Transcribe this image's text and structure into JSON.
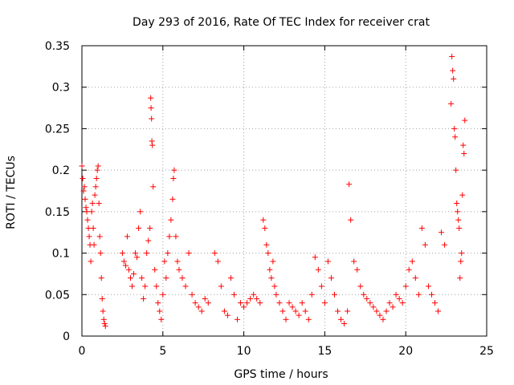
{
  "chart_data": {
    "type": "scatter",
    "title": "Day 293 of 2016, Rate Of TEC Index for receiver crat",
    "xlabel": "GPS time / hours",
    "ylabel": "ROTI / TECUs",
    "xlim": [
      0,
      25
    ],
    "ylim": [
      0,
      0.35
    ],
    "x_ticks": [
      0,
      5,
      10,
      15,
      20,
      25
    ],
    "x_tick_labels": [
      "0",
      "5",
      "10",
      "15",
      "20",
      "25"
    ],
    "y_ticks": [
      0,
      0.05,
      0.1,
      0.15,
      0.2,
      0.25,
      0.3,
      0.35
    ],
    "y_tick_labels": [
      "0",
      "0.05",
      "0.1",
      "0.15",
      "0.2",
      "0.25",
      "0.3",
      "0.35"
    ],
    "grid": true,
    "marker": "+",
    "marker_color": "#ff0000",
    "series": [
      {
        "name": "ROTI",
        "points": [
          [
            0.0,
            0.205
          ],
          [
            0.05,
            0.19
          ],
          [
            0.1,
            0.175
          ],
          [
            0.15,
            0.18
          ],
          [
            0.2,
            0.165
          ],
          [
            0.25,
            0.155
          ],
          [
            0.3,
            0.15
          ],
          [
            0.35,
            0.14
          ],
          [
            0.4,
            0.13
          ],
          [
            0.45,
            0.12
          ],
          [
            0.5,
            0.11
          ],
          [
            0.55,
            0.09
          ],
          [
            0.6,
            0.15
          ],
          [
            0.65,
            0.16
          ],
          [
            0.7,
            0.13
          ],
          [
            0.75,
            0.11
          ],
          [
            0.8,
            0.17
          ],
          [
            0.85,
            0.18
          ],
          [
            0.9,
            0.19
          ],
          [
            0.95,
            0.2
          ],
          [
            1.0,
            0.205
          ],
          [
            1.05,
            0.16
          ],
          [
            1.1,
            0.12
          ],
          [
            1.15,
            0.1
          ],
          [
            1.2,
            0.07
          ],
          [
            1.25,
            0.045
          ],
          [
            1.3,
            0.03
          ],
          [
            1.35,
            0.02
          ],
          [
            1.4,
            0.015
          ],
          [
            1.45,
            0.012
          ],
          [
            2.5,
            0.1
          ],
          [
            2.6,
            0.09
          ],
          [
            2.7,
            0.085
          ],
          [
            2.8,
            0.12
          ],
          [
            2.9,
            0.08
          ],
          [
            3.0,
            0.07
          ],
          [
            3.1,
            0.06
          ],
          [
            3.2,
            0.075
          ],
          [
            3.3,
            0.1
          ],
          [
            3.4,
            0.095
          ],
          [
            3.5,
            0.13
          ],
          [
            3.6,
            0.15
          ],
          [
            3.7,
            0.07
          ],
          [
            3.8,
            0.045
          ],
          [
            3.9,
            0.06
          ],
          [
            4.0,
            0.1
          ],
          [
            4.1,
            0.115
          ],
          [
            4.2,
            0.13
          ],
          [
            4.25,
            0.287
          ],
          [
            4.27,
            0.275
          ],
          [
            4.3,
            0.262
          ],
          [
            4.32,
            0.235
          ],
          [
            4.35,
            0.23
          ],
          [
            4.4,
            0.18
          ],
          [
            4.5,
            0.08
          ],
          [
            4.6,
            0.06
          ],
          [
            4.7,
            0.04
          ],
          [
            4.8,
            0.03
          ],
          [
            4.9,
            0.02
          ],
          [
            5.0,
            0.05
          ],
          [
            5.1,
            0.09
          ],
          [
            5.2,
            0.07
          ],
          [
            5.3,
            0.1
          ],
          [
            5.4,
            0.12
          ],
          [
            5.5,
            0.14
          ],
          [
            5.6,
            0.165
          ],
          [
            5.65,
            0.19
          ],
          [
            5.7,
            0.2
          ],
          [
            5.8,
            0.12
          ],
          [
            5.9,
            0.09
          ],
          [
            6.0,
            0.08
          ],
          [
            6.2,
            0.07
          ],
          [
            6.4,
            0.06
          ],
          [
            6.6,
            0.1
          ],
          [
            6.8,
            0.05
          ],
          [
            7.0,
            0.04
          ],
          [
            7.2,
            0.035
          ],
          [
            7.4,
            0.03
          ],
          [
            7.6,
            0.045
          ],
          [
            7.8,
            0.04
          ],
          [
            8.2,
            0.1
          ],
          [
            8.4,
            0.09
          ],
          [
            8.6,
            0.06
          ],
          [
            8.8,
            0.03
          ],
          [
            9.0,
            0.025
          ],
          [
            9.2,
            0.07
          ],
          [
            9.4,
            0.05
          ],
          [
            9.6,
            0.02
          ],
          [
            9.8,
            0.04
          ],
          [
            10.0,
            0.035
          ],
          [
            10.2,
            0.04
          ],
          [
            10.4,
            0.045
          ],
          [
            10.6,
            0.05
          ],
          [
            10.8,
            0.045
          ],
          [
            11.0,
            0.04
          ],
          [
            11.2,
            0.14
          ],
          [
            11.3,
            0.13
          ],
          [
            11.4,
            0.11
          ],
          [
            11.5,
            0.1
          ],
          [
            11.6,
            0.08
          ],
          [
            11.7,
            0.07
          ],
          [
            11.8,
            0.09
          ],
          [
            11.9,
            0.06
          ],
          [
            12.0,
            0.05
          ],
          [
            12.2,
            0.04
          ],
          [
            12.4,
            0.03
          ],
          [
            12.6,
            0.02
          ],
          [
            12.8,
            0.04
          ],
          [
            13.0,
            0.035
          ],
          [
            13.2,
            0.03
          ],
          [
            13.4,
            0.025
          ],
          [
            13.6,
            0.04
          ],
          [
            13.8,
            0.03
          ],
          [
            14.0,
            0.02
          ],
          [
            14.2,
            0.05
          ],
          [
            14.4,
            0.095
          ],
          [
            14.6,
            0.08
          ],
          [
            14.8,
            0.06
          ],
          [
            15.0,
            0.04
          ],
          [
            15.2,
            0.09
          ],
          [
            15.4,
            0.07
          ],
          [
            15.6,
            0.05
          ],
          [
            15.8,
            0.03
          ],
          [
            16.0,
            0.02
          ],
          [
            16.2,
            0.015
          ],
          [
            16.4,
            0.03
          ],
          [
            16.5,
            0.183
          ],
          [
            16.6,
            0.14
          ],
          [
            16.8,
            0.09
          ],
          [
            17.0,
            0.08
          ],
          [
            17.2,
            0.06
          ],
          [
            17.4,
            0.05
          ],
          [
            17.6,
            0.045
          ],
          [
            17.8,
            0.04
          ],
          [
            18.0,
            0.035
          ],
          [
            18.2,
            0.03
          ],
          [
            18.4,
            0.025
          ],
          [
            18.6,
            0.02
          ],
          [
            18.8,
            0.03
          ],
          [
            19.0,
            0.04
          ],
          [
            19.2,
            0.035
          ],
          [
            19.4,
            0.05
          ],
          [
            19.6,
            0.045
          ],
          [
            19.8,
            0.04
          ],
          [
            20.0,
            0.06
          ],
          [
            20.2,
            0.08
          ],
          [
            20.4,
            0.09
          ],
          [
            20.6,
            0.07
          ],
          [
            20.8,
            0.05
          ],
          [
            21.0,
            0.13
          ],
          [
            21.2,
            0.11
          ],
          [
            21.4,
            0.06
          ],
          [
            21.6,
            0.05
          ],
          [
            21.8,
            0.04
          ],
          [
            22.0,
            0.03
          ],
          [
            22.2,
            0.125
          ],
          [
            22.4,
            0.11
          ],
          [
            22.8,
            0.28
          ],
          [
            22.85,
            0.337
          ],
          [
            22.9,
            0.32
          ],
          [
            22.95,
            0.31
          ],
          [
            23.0,
            0.25
          ],
          [
            23.05,
            0.24
          ],
          [
            23.1,
            0.2
          ],
          [
            23.15,
            0.16
          ],
          [
            23.2,
            0.15
          ],
          [
            23.25,
            0.14
          ],
          [
            23.3,
            0.13
          ],
          [
            23.35,
            0.07
          ],
          [
            23.4,
            0.09
          ],
          [
            23.45,
            0.1
          ],
          [
            23.5,
            0.17
          ],
          [
            23.55,
            0.23
          ],
          [
            23.6,
            0.22
          ],
          [
            23.65,
            0.26
          ]
        ]
      }
    ]
  }
}
